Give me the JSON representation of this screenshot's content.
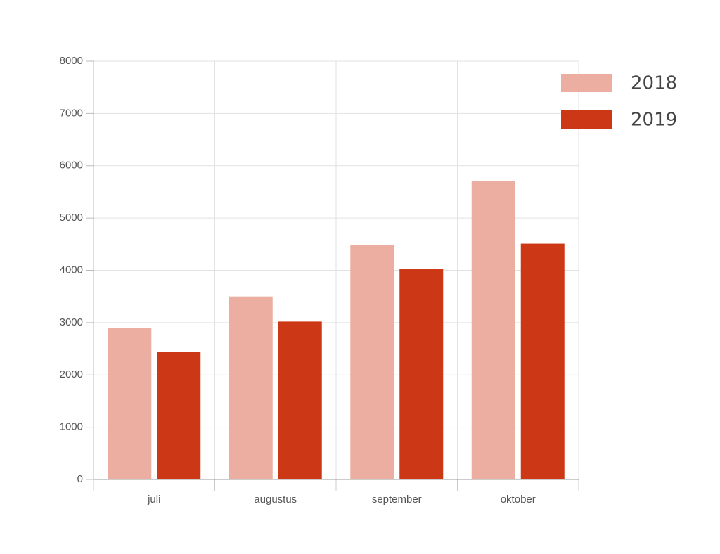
{
  "chart_data": {
    "type": "bar",
    "categories": [
      "juli",
      "augustus",
      "september",
      "oktober"
    ],
    "series": [
      {
        "name": "2018",
        "color": "#ebaea0",
        "values": [
          2900,
          3500,
          4490,
          5710
        ]
      },
      {
        "name": "2019",
        "color": "#cc3816",
        "values": [
          2440,
          3020,
          4020,
          4510
        ]
      }
    ],
    "ylim": [
      0,
      8000
    ],
    "yticks": [
      0,
      1000,
      2000,
      3000,
      4000,
      5000,
      6000,
      7000,
      8000
    ],
    "grid": true,
    "legend": "top-right"
  }
}
